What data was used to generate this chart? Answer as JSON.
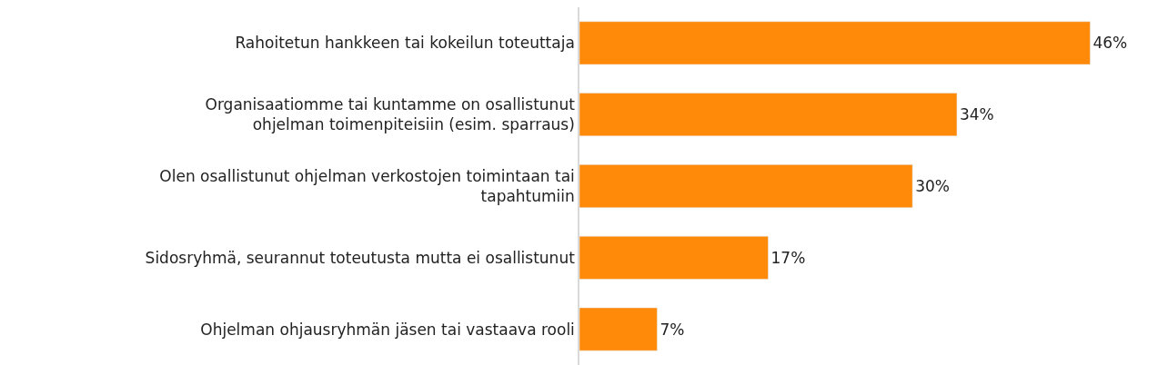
{
  "chart_data": {
    "type": "bar",
    "orientation": "horizontal",
    "categories": [
      "Rahoitetun hankkeen tai kokeilun toteuttaja",
      "Organisaatiomme tai kuntamme on osallistunut\nohjelman toimenpiteisiin (esim. sparraus)",
      "Olen osallistunut ohjelman verkostojen toimintaan tai\ntapahtumiin",
      "Sidosryhmä, seurannut toteutusta mutta ei osallistunut",
      "Ohjelman ohjausryhmän jäsen tai vastaava rooli"
    ],
    "values": [
      46,
      34,
      30,
      17,
      7
    ],
    "value_labels": [
      "46%",
      "34%",
      "30%",
      "17%",
      "7%"
    ],
    "color": "#ff8a0a"
  }
}
